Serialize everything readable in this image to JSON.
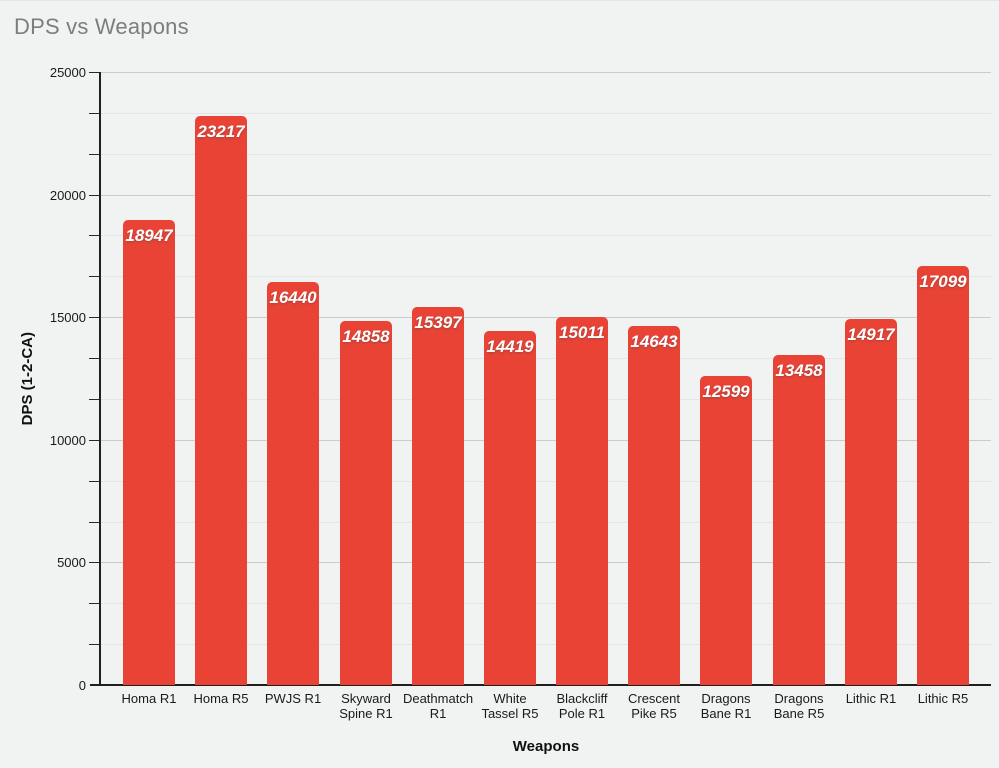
{
  "chart_data": {
    "type": "bar",
    "title": "DPS vs Weapons",
    "xlabel": "Weapons",
    "ylabel": "DPS (1-2-CA)",
    "categories": [
      "Homa R1",
      "Homa R5",
      "PWJS R1",
      "Skyward Spine R1",
      "Deathmatch R1",
      "White Tassel R5",
      "Blackcliff Pole R1",
      "Crescent Pike R5",
      "Dragons Bane R1",
      "Dragons Bane R5",
      "Lithic R1",
      "Lithic R5"
    ],
    "category_display_lines": [
      [
        "Homa R1"
      ],
      [
        "Homa R5"
      ],
      [
        "PWJS R1"
      ],
      [
        "Skyward",
        "Spine R1"
      ],
      [
        "Deathmatch",
        "R1"
      ],
      [
        "White",
        "Tassel R5"
      ],
      [
        "Blackcliff",
        "Pole R1"
      ],
      [
        "Crescent",
        "Pike R5"
      ],
      [
        "Dragons",
        "Bane R1"
      ],
      [
        "Dragons",
        "Bane R5"
      ],
      [
        "Lithic R1"
      ],
      [
        "Lithic R5"
      ]
    ],
    "values": [
      18947,
      23217,
      16440,
      14858,
      15397,
      14419,
      15011,
      14643,
      12599,
      13458,
      14917,
      17099
    ],
    "ylim": [
      0,
      25000
    ],
    "yticks": [
      25000,
      20000,
      15000,
      10000,
      5000,
      0
    ],
    "minor_gridlines_between_majors": 2,
    "grid": true,
    "legend_position": "none",
    "colors": {
      "bar": "#e94335",
      "background": "#f1f2f2",
      "grid_major": "#c9cccc",
      "grid_minor": "#e3e5e5",
      "axis": "#1f1f1f",
      "title_text": "#7d7d7d",
      "data_label_text": "#ffffff"
    }
  }
}
